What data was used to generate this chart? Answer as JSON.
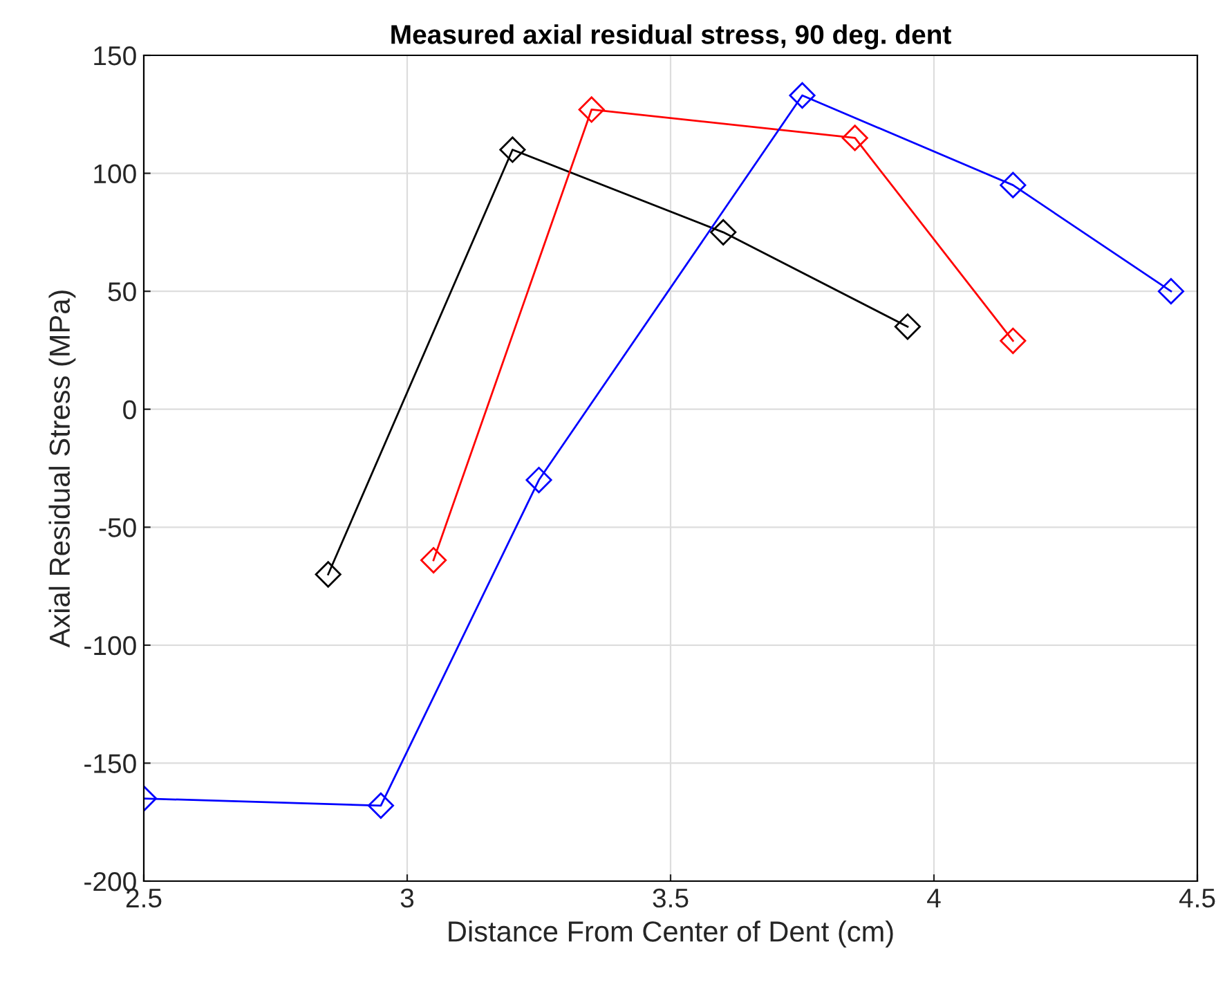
{
  "chart_data": {
    "type": "line",
    "title": "Measured axial residual stress, 90 deg. dent",
    "xlabel": "Distance From Center of Dent (cm)",
    "ylabel": "Axial Residual Stress (MPa)",
    "series": [
      {
        "color": "#000000",
        "x": [
          2.85,
          3.2,
          3.6,
          3.95
        ],
        "values": [
          -70,
          110,
          75,
          35
        ]
      },
      {
        "color": "#ff0000",
        "x": [
          3.05,
          3.35,
          3.85,
          4.15
        ],
        "values": [
          -64,
          127,
          115,
          29
        ]
      },
      {
        "color": "#0000ff",
        "x": [
          2.5,
          2.95,
          3.25,
          3.75,
          4.15,
          4.45
        ],
        "values": [
          -165,
          -168,
          -30,
          133,
          95,
          50
        ]
      }
    ],
    "xlim": [
      2.5,
      4.5
    ],
    "xticks": [
      2.5,
      3,
      3.5,
      4,
      4.5
    ],
    "ylim": [
      -200,
      150
    ],
    "yticks": [
      -200,
      -150,
      -100,
      -50,
      0,
      50,
      100,
      150
    ],
    "grid": true,
    "marker": "diamond",
    "line_style": "solid"
  }
}
